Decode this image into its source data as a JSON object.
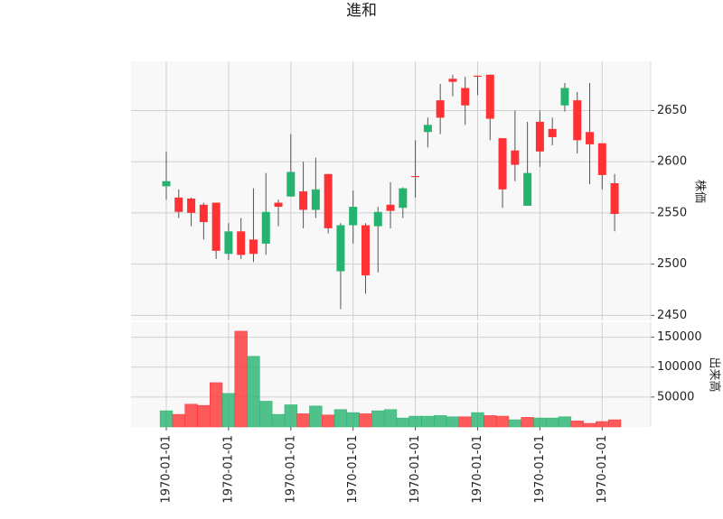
{
  "chart_data": {
    "type": "candlestick",
    "title": "進和",
    "ylabel": "株価",
    "volume_ylabel": "出来高",
    "categories": [
      "1970-01-01",
      null,
      null,
      null,
      null,
      "1970-01-01",
      null,
      null,
      null,
      null,
      "1970-01-01",
      null,
      null,
      null,
      null,
      "1970-01-01",
      null,
      null,
      null,
      null,
      "1970-01-01",
      null,
      null,
      null,
      null,
      "1970-01-01",
      null,
      null,
      null,
      null,
      "1970-01-01",
      null,
      null,
      null,
      null,
      "1970-01-01",
      null
    ],
    "open": [
      2576,
      2565,
      2564,
      2558,
      2560,
      2510,
      2532,
      2524,
      2520,
      2560,
      2566,
      2571,
      2553,
      2588,
      2493,
      2538,
      2538,
      2537,
      2558,
      2555,
      2586,
      2629,
      2660,
      2681,
      2672,
      2684,
      2685,
      2623,
      2611,
      2557,
      2639,
      2632,
      2655,
      2660,
      2629,
      2618,
      2579
    ],
    "high": [
      2610,
      2573,
      2565,
      2560,
      2560,
      2540,
      2545,
      2574,
      2589,
      2563,
      2627,
      2600,
      2604,
      2588,
      2540,
      2572,
      2540,
      2556,
      2580,
      2575,
      2621,
      2643,
      2676,
      2685,
      2683,
      2684,
      2685,
      2623,
      2650,
      2639,
      2650,
      2643,
      2677,
      2668,
      2677,
      2618,
      2588
    ],
    "low": [
      2563,
      2545,
      2537,
      2524,
      2505,
      2504,
      2505,
      2502,
      2509,
      2537,
      2566,
      2535,
      2545,
      2530,
      2456,
      2520,
      2471,
      2492,
      2535,
      2545,
      2565,
      2614,
      2627,
      2664,
      2636,
      2665,
      2621,
      2555,
      2581,
      2557,
      2595,
      2616,
      2649,
      2608,
      2578,
      2573,
      2532
    ],
    "close": [
      2581,
      2551,
      2550,
      2541,
      2513,
      2532,
      2509,
      2510,
      2551,
      2556,
      2590,
      2553,
      2573,
      2535,
      2538,
      2556,
      2489,
      2551,
      2552,
      2574,
      2585,
      2636,
      2643,
      2678,
      2655,
      2683,
      2642,
      2573,
      2597,
      2589,
      2610,
      2624,
      2672,
      2621,
      2617,
      2587,
      2549
    ],
    "volume": [
      27000,
      21000,
      38000,
      36000,
      74000,
      56000,
      160000,
      118000,
      43000,
      21000,
      37000,
      22000,
      35000,
      20000,
      29000,
      24000,
      22000,
      27000,
      29000,
      15000,
      18000,
      18000,
      19000,
      17000,
      17000,
      24000,
      19000,
      18000,
      12000,
      16000,
      15000,
      15000,
      17000,
      10000,
      6000,
      9000,
      12000
    ],
    "up_color": "#26b36f",
    "down_color": "#fe3235",
    "ylim": [
      2445,
      2698
    ],
    "yticks": [
      2450,
      2500,
      2550,
      2600,
      2650
    ],
    "volume_ylim": [
      0,
      175000
    ],
    "volume_yticks": [
      50000,
      100000,
      150000
    ],
    "grid": true
  }
}
